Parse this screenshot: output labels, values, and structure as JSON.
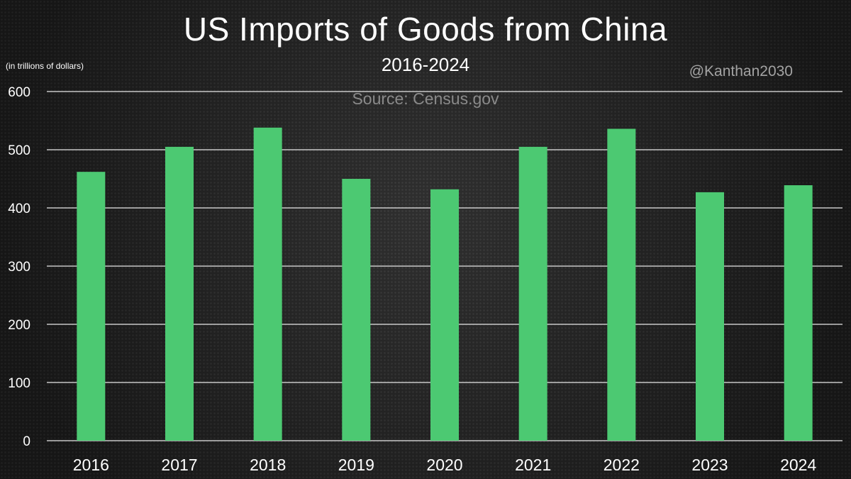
{
  "chart_data": {
    "type": "bar",
    "title": "US Imports of Goods from China",
    "subtitle": "2016-2024",
    "source": "Source: Census.gov",
    "handle": "@Kanthan2030",
    "units_label": "(in trillions of dollars)",
    "categories": [
      "2016",
      "2017",
      "2018",
      "2019",
      "2020",
      "2021",
      "2022",
      "2023",
      "2024"
    ],
    "values": [
      462,
      505,
      538,
      450,
      432,
      505,
      536,
      427,
      439
    ],
    "ylim": [
      0,
      600
    ],
    "yticks": [
      0,
      100,
      200,
      300,
      400,
      500,
      600
    ],
    "grid": true,
    "bar_color": "#4cc972",
    "grid_color": "#e8e8e8"
  }
}
